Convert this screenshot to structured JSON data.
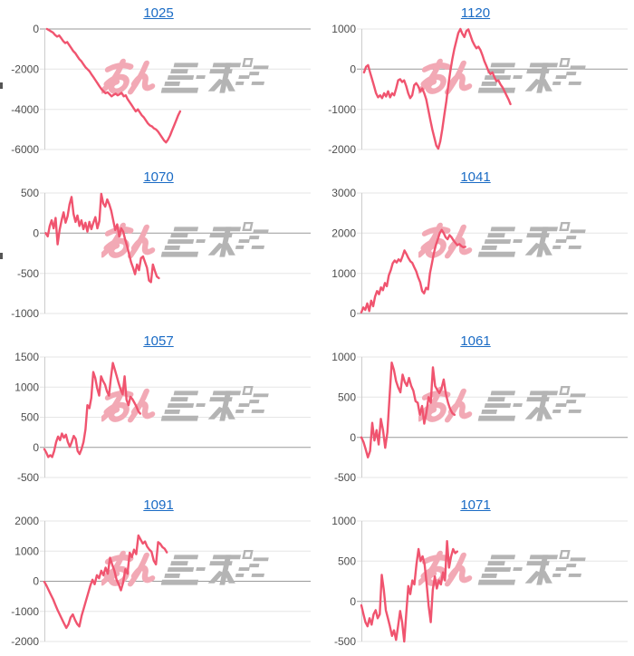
{
  "page": {
    "background": "#ffffff"
  },
  "colors": {
    "line": "#f0546f",
    "grid": "#e6e6e6",
    "zero_line": "#9a9a9a",
    "axis": "#cccccc",
    "tick_label": "#4d4d4d",
    "title_link": "#1a6bc5",
    "watermark_pink": "#f2a9b5",
    "watermark_gray": "#b4b4b4"
  },
  "watermark": {
    "name": "minrepo-logo",
    "text_pink": "みん",
    "text_gray": "レポ"
  },
  "clipped_axis_marks": [
    {
      "y": 91,
      "h": 7
    },
    {
      "y": 279,
      "h": 7
    }
  ],
  "chart_data": [
    {
      "type": "line",
      "title": "1025",
      "y_ticks": [
        0,
        -2000,
        -4000,
        -6000
      ],
      "ylim": [
        -6000,
        0
      ],
      "x_span": [
        0.01,
        0.51
      ],
      "grid": true,
      "legend": "none",
      "values": [
        0,
        -60,
        -120,
        -180,
        -300,
        -380,
        -320,
        -450,
        -600,
        -700,
        -650,
        -800,
        -950,
        -1100,
        -1200,
        -1350,
        -1500,
        -1600,
        -1750,
        -1900,
        -2000,
        -2100,
        -2250,
        -2400,
        -2550,
        -2700,
        -2850,
        -3000,
        -3100,
        -3200,
        -3150,
        -3250,
        -3350,
        -3280,
        -3220,
        -3300,
        -3250,
        -3180,
        -3350,
        -3300,
        -3500,
        -3650,
        -3800,
        -3950,
        -4100,
        -4000,
        -4150,
        -4300,
        -4400,
        -4550,
        -4700,
        -4800,
        -4850,
        -4950,
        -5000,
        -5100,
        -5250,
        -5400,
        -5550,
        -5650,
        -5500,
        -5300,
        -5050,
        -4800,
        -4550,
        -4300,
        -4100
      ]
    },
    {
      "type": "line",
      "title": "1120",
      "y_ticks": [
        1000,
        0,
        -1000,
        -2000
      ],
      "ylim": [
        -2000,
        1000
      ],
      "x_span": [
        0.01,
        0.56
      ],
      "grid": true,
      "legend": "none",
      "values": [
        -80,
        60,
        100,
        -80,
        -250,
        -420,
        -600,
        -700,
        -650,
        -720,
        -600,
        -680,
        -550,
        -700,
        -600,
        -650,
        -480,
        -280,
        -250,
        -320,
        -280,
        -420,
        -600,
        -720,
        -650,
        -400,
        -350,
        -420,
        -550,
        -480,
        -600,
        -750,
        -1000,
        -1250,
        -1500,
        -1700,
        -1900,
        -1980,
        -1800,
        -1500,
        -1150,
        -800,
        -400,
        -50,
        250,
        500,
        700,
        900,
        1000,
        880,
        800,
        950,
        990,
        850,
        700,
        600,
        520,
        560,
        480,
        350,
        200,
        80,
        -50,
        -120,
        -80,
        -200,
        -300,
        -280,
        -380,
        -450,
        -550,
        -650,
        -750,
        -870
      ]
    },
    {
      "type": "line",
      "title": "1070",
      "y_ticks": [
        500,
        0,
        -500,
        -1000
      ],
      "ylim": [
        -1000,
        500
      ],
      "x_span": [
        0.005,
        0.43
      ],
      "grid": true,
      "legend": "none",
      "values": [
        0,
        -40,
        90,
        160,
        60,
        190,
        -140,
        40,
        160,
        260,
        130,
        210,
        360,
        450,
        240,
        140,
        220,
        90,
        160,
        50,
        130,
        20,
        140,
        50,
        130,
        200,
        60,
        150,
        490,
        370,
        330,
        420,
        360,
        280,
        160,
        40,
        110,
        -40,
        60,
        20,
        -80,
        -160,
        -260,
        -360,
        -430,
        -510,
        -390,
        -460,
        -310,
        -290,
        -360,
        -430,
        -590,
        -610,
        -390,
        -470,
        -540,
        -560
      ]
    },
    {
      "type": "line",
      "title": "1041",
      "y_ticks": [
        3000,
        2000,
        1000,
        0
      ],
      "ylim": [
        0,
        3000
      ],
      "x_span": [
        0.0,
        0.39
      ],
      "grid": true,
      "legend": "none",
      "values": [
        30,
        150,
        90,
        250,
        60,
        320,
        180,
        420,
        560,
        480,
        650,
        580,
        760,
        680,
        950,
        1080,
        1250,
        1320,
        1270,
        1350,
        1300,
        1420,
        1570,
        1480,
        1380,
        1300,
        1260,
        1150,
        1050,
        900,
        780,
        560,
        500,
        640,
        600,
        1000,
        1250,
        1500,
        1700,
        1850,
        2000,
        2080,
        2000,
        1900,
        1850,
        1950,
        1900,
        1820,
        1760,
        1700,
        1730,
        1680,
        1650,
        1660
      ]
    },
    {
      "type": "line",
      "title": "1057",
      "y_ticks": [
        1500,
        1000,
        500,
        0,
        -500
      ],
      "ylim": [
        -500,
        1500
      ],
      "x_span": [
        0.0,
        0.36
      ],
      "grid": true,
      "legend": "none",
      "values": [
        -30,
        -90,
        -160,
        -130,
        -160,
        -60,
        90,
        180,
        120,
        230,
        160,
        210,
        90,
        10,
        90,
        190,
        140,
        -60,
        -110,
        -30,
        90,
        300,
        700,
        650,
        820,
        1250,
        1150,
        980,
        860,
        1180,
        1100,
        1040,
        930,
        860,
        1150,
        1400,
        1290,
        1180,
        1060,
        960,
        880,
        1180,
        790,
        700,
        840,
        800,
        740,
        680,
        600,
        560
      ]
    },
    {
      "type": "line",
      "title": "1061",
      "y_ticks": [
        1000,
        500,
        0,
        -500
      ],
      "ylim": [
        -500,
        1000
      ],
      "x_span": [
        0.0,
        0.35
      ],
      "grid": true,
      "legend": "none",
      "values": [
        0,
        -60,
        -150,
        -250,
        -170,
        180,
        -40,
        90,
        -90,
        230,
        90,
        -130,
        60,
        500,
        930,
        840,
        700,
        620,
        560,
        780,
        690,
        640,
        740,
        640,
        580,
        450,
        430,
        280,
        390,
        170,
        310,
        500,
        430,
        870,
        640,
        590,
        550,
        610,
        720,
        540,
        430,
        350,
        300,
        280
      ]
    },
    {
      "type": "line",
      "title": "1091",
      "y_ticks": [
        2000,
        1000,
        0,
        -1000,
        -2000
      ],
      "ylim": [
        -2000,
        2000
      ],
      "x_span": [
        0.0,
        0.46
      ],
      "grid": true,
      "legend": "none",
      "values": [
        -20,
        -150,
        -300,
        -450,
        -600,
        -780,
        -950,
        -1100,
        -1250,
        -1400,
        -1550,
        -1430,
        -1200,
        -1100,
        -1280,
        -1420,
        -1500,
        -1150,
        -900,
        -650,
        -400,
        -150,
        50,
        -100,
        200,
        100,
        350,
        200,
        450,
        250,
        780,
        550,
        350,
        50,
        -100,
        -300,
        -50,
        400,
        250,
        950,
        800,
        1050,
        900,
        1520,
        1380,
        1250,
        1320,
        1150,
        1050,
        980,
        680,
        560,
        1300,
        1240,
        1130,
        1080,
        960
      ]
    },
    {
      "type": "line",
      "title": "1071",
      "y_ticks": [
        1000,
        500,
        0,
        -500
      ],
      "ylim": [
        -500,
        1000
      ],
      "x_span": [
        0.0,
        0.36
      ],
      "grid": true,
      "legend": "none",
      "values": [
        -50,
        -160,
        -260,
        -310,
        -210,
        -290,
        -160,
        -110,
        -210,
        -160,
        330,
        140,
        -110,
        -210,
        -310,
        -430,
        -360,
        -480,
        -310,
        -120,
        -260,
        -500,
        -160,
        190,
        90,
        260,
        210,
        460,
        650,
        500,
        560,
        460,
        210,
        -60,
        -260,
        140,
        310,
        160,
        260,
        210,
        360,
        260,
        750,
        420,
        560,
        650,
        600,
        620
      ]
    }
  ]
}
